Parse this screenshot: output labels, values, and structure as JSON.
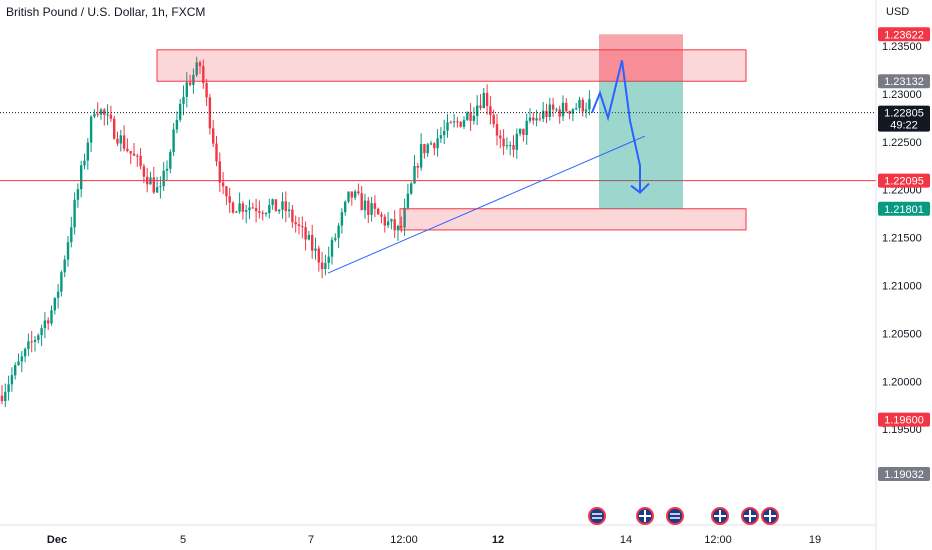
{
  "chart_data": {
    "type": "candlestick",
    "title": "British Pound / U.S. Dollar, 1h, FXCM",
    "currency": "USD",
    "price_range": [
      1.185,
      1.2398
    ],
    "price_ticks": [
      "1.23500",
      "1.23000",
      "1.22500",
      "1.22000",
      "1.21500",
      "1.21000",
      "1.20500",
      "1.20000",
      "1.19500"
    ],
    "time_ticks": [
      "Dec",
      "5",
      "7",
      "12:00",
      "12",
      "14",
      "12:00",
      "19"
    ],
    "price_badges": [
      {
        "price": 1.23622,
        "text": "1.23622",
        "color": "#f23645"
      },
      {
        "price": 1.23132,
        "text": "1.23132",
        "color": "#787b86"
      },
      {
        "price": 1.22805,
        "text": "1.22805",
        "sub": "49:22",
        "color": "#131722"
      },
      {
        "price": 1.22095,
        "text": "1.22095",
        "color": "#f23645"
      },
      {
        "price": 1.21801,
        "text": "1.21801",
        "color": "#089981"
      },
      {
        "price": 1.196,
        "text": "1.19600",
        "color": "#f23645"
      },
      {
        "price": 1.19032,
        "text": "1.19032",
        "color": "#787b86"
      }
    ],
    "horizontal_line": 1.22095,
    "current_price": 1.22805,
    "resistance_zone": [
      1.23132,
      1.2346
    ],
    "support_zone": [
      1.2158,
      1.21801
    ],
    "short_position": {
      "entry": 1.23132,
      "stop": 1.23622,
      "target": 1.21801
    },
    "trendline": [
      [
        0.0,
        1.2113
      ],
      [
        1.0,
        1.2256
      ]
    ],
    "projected_path": [
      1.22805,
      1.2301,
      1.2275,
      1.2335,
      1.2272,
      1.2225,
      1.2197
    ],
    "anchors": [
      [
        0,
        1.1985
      ],
      [
        55,
        1.208
      ],
      [
        95,
        1.229
      ],
      [
        160,
        1.2195
      ],
      [
        185,
        1.2307
      ],
      [
        200,
        1.233
      ],
      [
        225,
        1.2185
      ],
      [
        285,
        1.218
      ],
      [
        325,
        1.212
      ],
      [
        350,
        1.2195
      ],
      [
        400,
        1.2155
      ],
      [
        420,
        1.224
      ],
      [
        470,
        1.228
      ],
      [
        485,
        1.23
      ],
      [
        505,
        1.2235
      ],
      [
        525,
        1.2265
      ],
      [
        545,
        1.228
      ],
      [
        590,
        1.229
      ]
    ],
    "event_icons": [
      "US",
      "GB",
      "US",
      "GB",
      "GB",
      "GB"
    ],
    "colors": {
      "up": "#089981",
      "down": "#f23645",
      "trend": "#2962ff"
    }
  }
}
